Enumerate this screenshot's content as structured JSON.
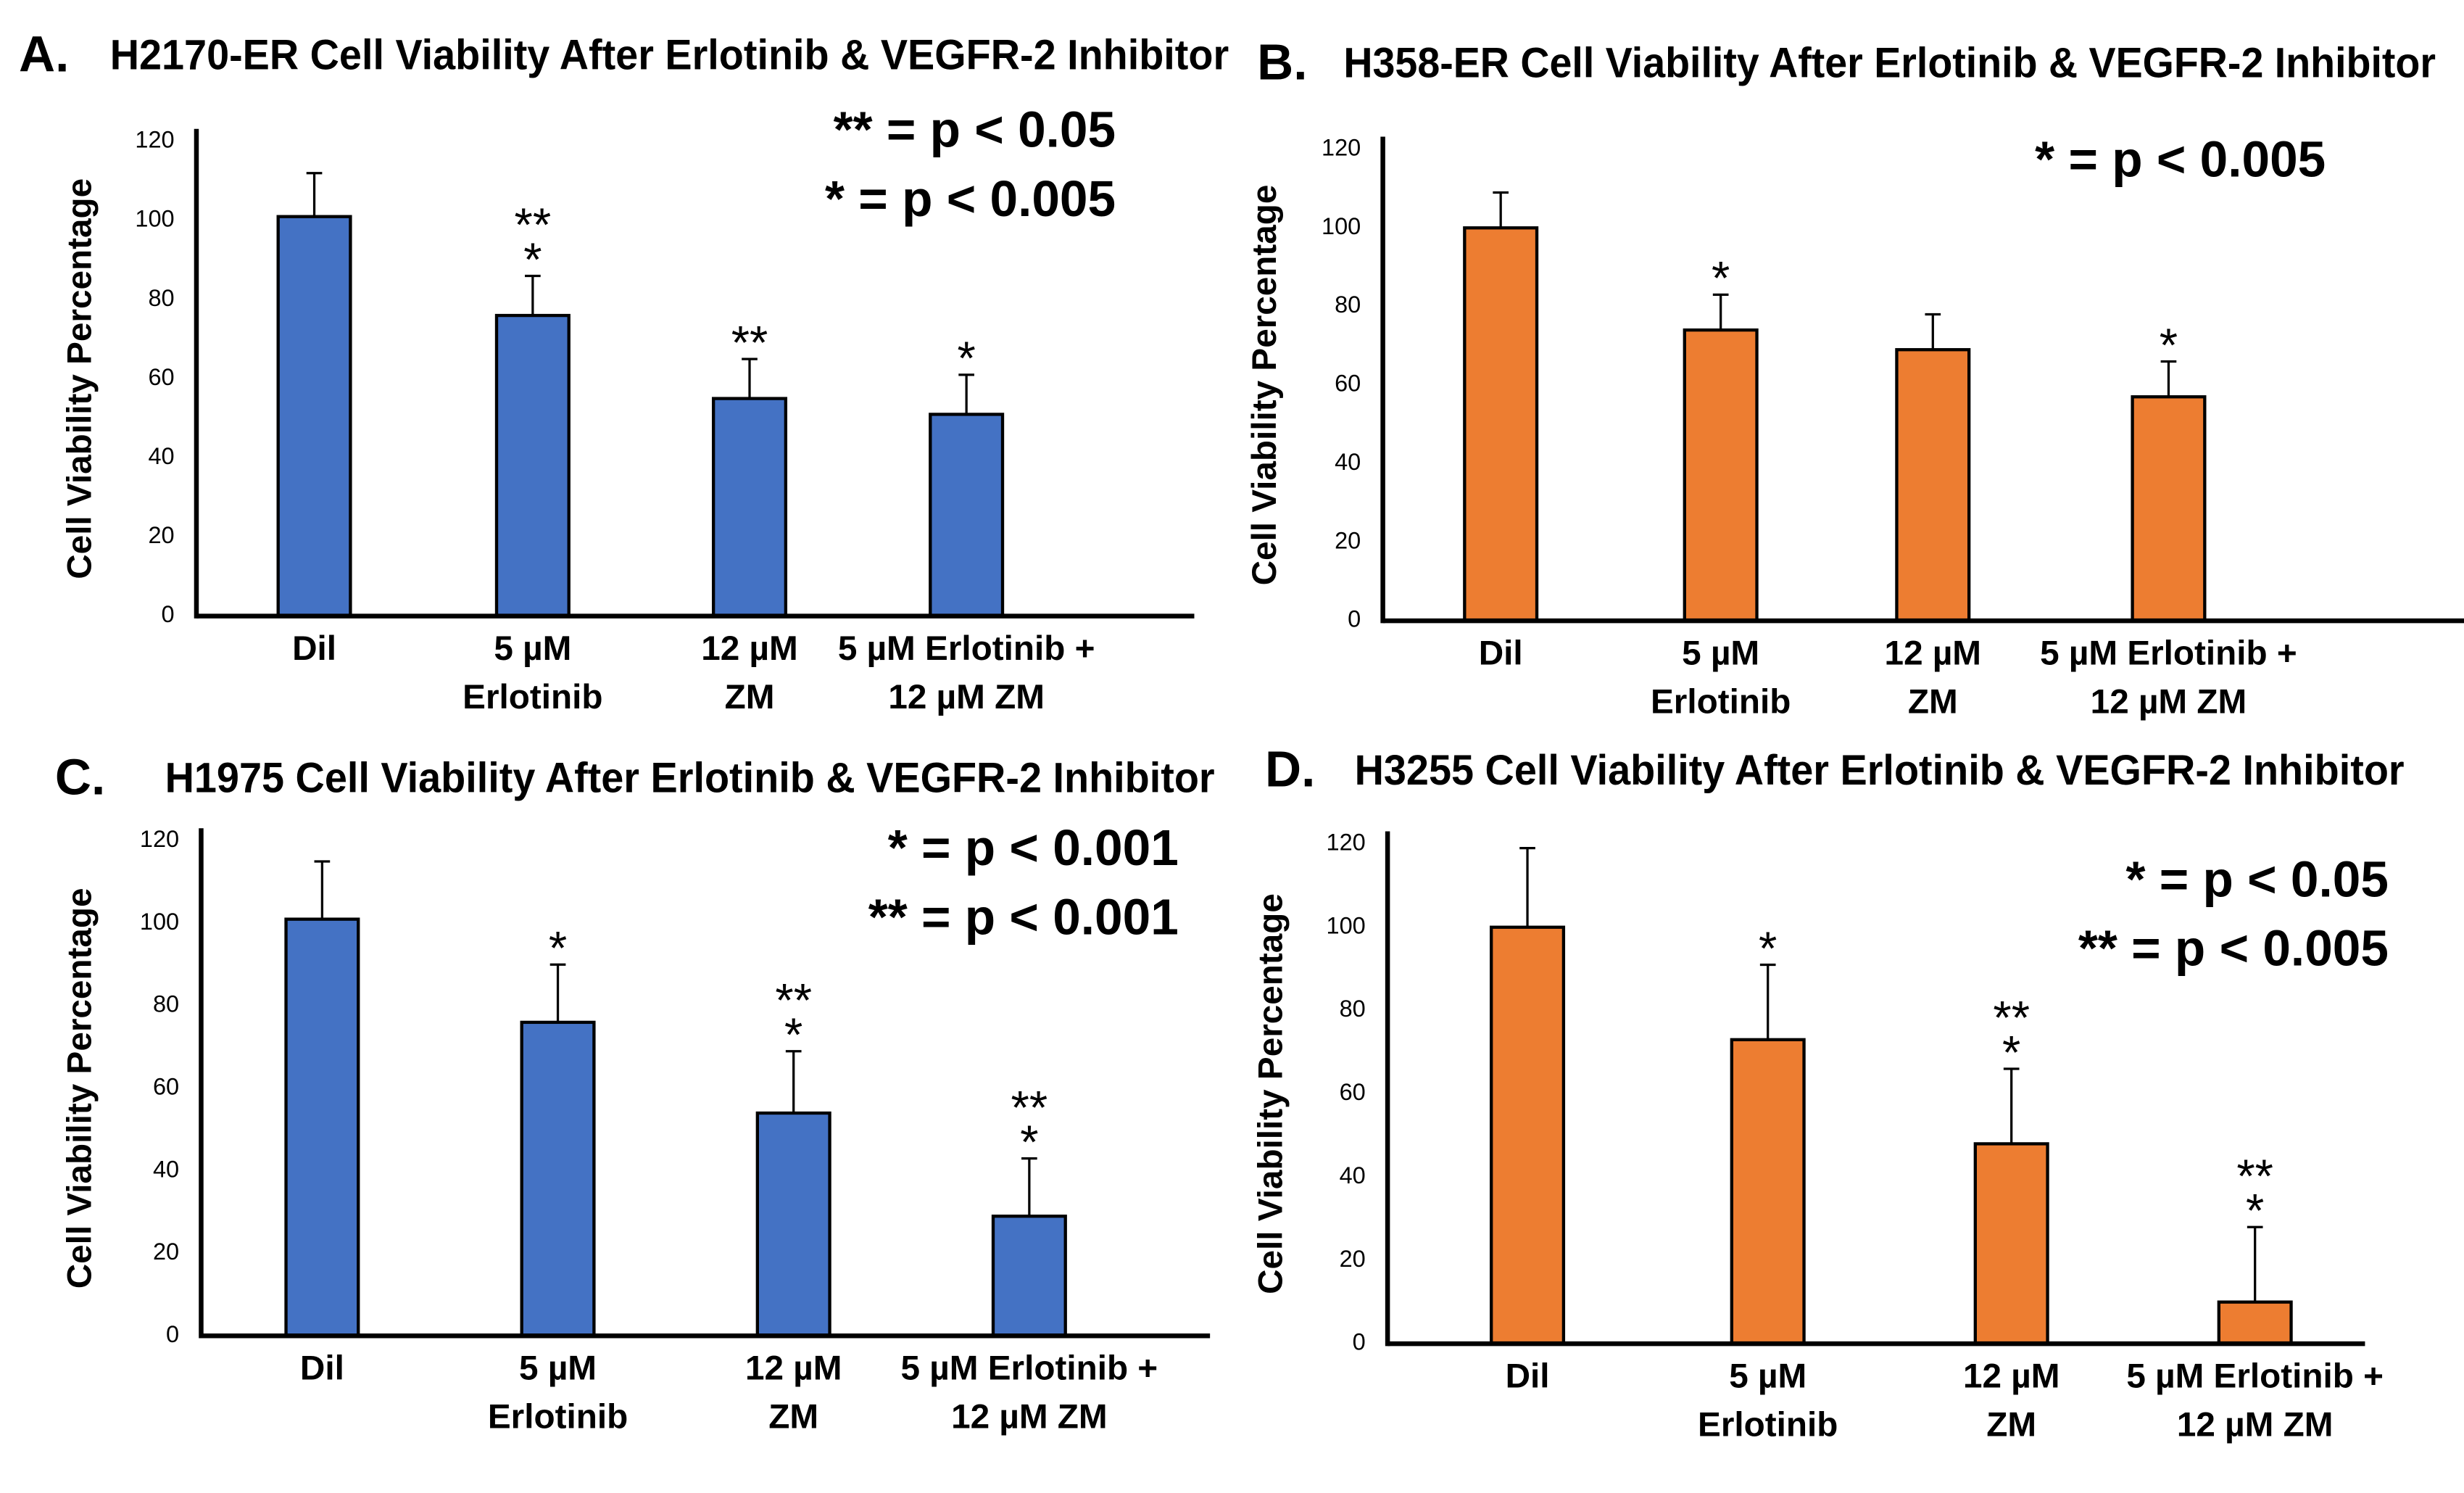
{
  "chart_data": [
    {
      "type": "bar",
      "label": "A.",
      "title": "H2170-ER Cell Viability After Erlotinib & VEGFR-2 Inhibitor",
      "ylabel": "Cell Viability Percentage",
      "categories": [
        [
          "Dil"
        ],
        [
          "5 µM",
          "Erlotinib"
        ],
        [
          "12 µM",
          "ZM"
        ],
        [
          "5 µM Erlotinib +",
          "12 µM ZM"
        ]
      ],
      "values": [
        101,
        76,
        55,
        51
      ],
      "errors": [
        11,
        10,
        10,
        10
      ],
      "significance": [
        null,
        [
          "**",
          "*"
        ],
        [
          "**"
        ],
        [
          "*"
        ]
      ],
      "annotations": [
        "** = p < 0.05",
        "* = p < 0.005"
      ],
      "color": "#4472c4",
      "ylim": [
        0,
        120
      ],
      "yticks": [
        0,
        20,
        40,
        60,
        80,
        100,
        120
      ]
    },
    {
      "type": "bar",
      "label": "B.",
      "title": "H358-ER Cell Viability After Erlotinib & VEGFR-2 Inhibitor",
      "ylabel": "Cell Viability Percentage",
      "categories": [
        [
          "Dil"
        ],
        [
          "5 µM",
          "Erlotinib"
        ],
        [
          "12 µM",
          "ZM"
        ],
        [
          "5 µM Erlotinib +",
          "12 µM ZM"
        ]
      ],
      "values": [
        100,
        74,
        69,
        57
      ],
      "errors": [
        9,
        9,
        9,
        9
      ],
      "significance": [
        null,
        [
          "*"
        ],
        null,
        [
          "*"
        ]
      ],
      "annotations": [
        "* = p < 0.005"
      ],
      "color": "#ed7d31",
      "ylim": [
        0,
        120
      ],
      "yticks": [
        0,
        20,
        40,
        60,
        80,
        100,
        120
      ]
    },
    {
      "type": "bar",
      "label": "C.",
      "title": "H1975 Cell Viability After Erlotinib & VEGFR-2 Inhibitor",
      "ylabel": "Cell Viability Percentage",
      "categories": [
        [
          "Dil"
        ],
        [
          "5 µM",
          "Erlotinib"
        ],
        [
          "12 µM",
          "ZM"
        ],
        [
          "5 µM Erlotinib +",
          "12 µM ZM"
        ]
      ],
      "values": [
        101,
        76,
        54,
        29
      ],
      "errors": [
        14,
        14,
        15,
        14
      ],
      "significance": [
        null,
        [
          "*"
        ],
        [
          "**",
          "*"
        ],
        [
          "**",
          "*"
        ]
      ],
      "annotations": [
        "* = p < 0.001",
        "** = p < 0.001"
      ],
      "color": "#4472c4",
      "ylim": [
        0,
        120
      ],
      "yticks": [
        0,
        20,
        40,
        60,
        80,
        100,
        120
      ]
    },
    {
      "type": "bar",
      "label": "D.",
      "title": "H3255 Cell Viability After Erlotinib & VEGFR-2 Inhibitor",
      "ylabel": "Cell Viability Percentage",
      "categories": [
        [
          "Dil"
        ],
        [
          "5 µM",
          "Erlotinib"
        ],
        [
          "12 µM",
          "ZM"
        ],
        [
          "5 µM Erlotinib +",
          "12 µM ZM"
        ]
      ],
      "values": [
        100,
        73,
        48,
        10
      ],
      "errors": [
        19,
        18,
        18,
        18
      ],
      "significance": [
        null,
        [
          "*"
        ],
        [
          "**",
          "*"
        ],
        [
          "**",
          "*"
        ]
      ],
      "annotations": [
        "* = p < 0.05",
        "** = p < 0.005"
      ],
      "color": "#ed7d31",
      "ylim": [
        0,
        120
      ],
      "yticks": [
        0,
        20,
        40,
        60,
        80,
        100,
        120
      ]
    }
  ]
}
